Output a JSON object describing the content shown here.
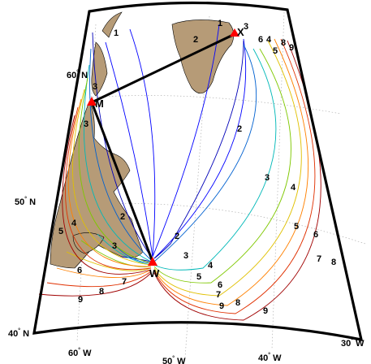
{
  "colors": {
    "land": "#b69b77",
    "frame": "#000000",
    "graticule": "#b0b0b0",
    "path": "#000000",
    "station": "#ff0000",
    "contour_1": "#0000ff",
    "contour_2": "#0000b8",
    "contour_3": "#0060d0",
    "contour_4": "#00b8b8",
    "contour_5": "#7fc800",
    "contour_6": "#e0c000",
    "contour_7": "#ff8000",
    "contour_8": "#e03000",
    "contour_9": "#a00000"
  },
  "lat_labels": [
    "40",
    "50",
    "60"
  ],
  "lat_suffix": "N",
  "lon_labels": [
    "60",
    "50",
    "40",
    "30"
  ],
  "lon_suffix": "W",
  "stations": {
    "x": {
      "label": "X",
      "marker": "triangle"
    },
    "m": {
      "label": "M",
      "marker": "triangle"
    },
    "w": {
      "label": "W",
      "marker": "triangle"
    }
  },
  "contour_labels": [
    "1",
    "2",
    "3",
    "4",
    "5",
    "6",
    "7",
    "8",
    "9"
  ]
}
